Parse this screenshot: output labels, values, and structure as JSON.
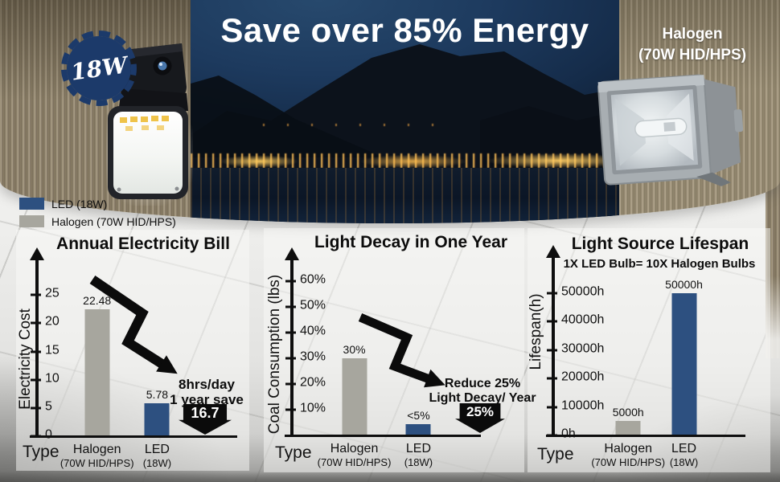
{
  "banner": {
    "title": "Save over 85% Energy",
    "badge_label": "18W",
    "halogen_label": [
      "Halogen",
      "(70W HID/HPS)"
    ]
  },
  "legend": {
    "items": [
      {
        "label": "LED (18W)",
        "color": "#2d5080"
      },
      {
        "label": "Halogen (70W HID/HPS)",
        "color": "#a7a69e"
      }
    ]
  },
  "colors": {
    "led_bar": "#2d5080",
    "halogen_bar": "#a7a69e",
    "badge_navy": "#1c3a6a",
    "annotation_black": "#0b0b0b"
  },
  "chart_data": [
    {
      "type": "bar",
      "title": "Annual Electricity Bill",
      "xlabel": "Type",
      "ylabel": "Electricity Cost",
      "categories": [
        [
          "Halogen",
          "(70W HID/HPS)"
        ],
        [
          "LED",
          "(18W)"
        ]
      ],
      "values": [
        22.48,
        5.78
      ],
      "bar_labels": [
        "22.48",
        "5.78"
      ],
      "bar_colors": [
        "#a7a69e",
        "#2d5080"
      ],
      "yticks": {
        "values": [
          0,
          5,
          10,
          15,
          20,
          25
        ],
        "labels": [
          "0",
          "5",
          "10",
          "15",
          "20",
          "25"
        ]
      },
      "ylim": [
        0,
        32
      ],
      "bar_pos_pct": [
        30,
        60
      ],
      "grid": false,
      "annotation": {
        "lines": [
          "8hrs/day",
          "1 year save"
        ],
        "arrow_value": "16.7"
      }
    },
    {
      "type": "bar",
      "title": "Light Decay in One Year",
      "xlabel": "Type",
      "ylabel": "Coal Consumption (lbs)",
      "categories": [
        [
          "Halogen",
          "(70W HID/HPS)"
        ],
        [
          "LED",
          "(18W)"
        ]
      ],
      "values": [
        30,
        4.5
      ],
      "bar_labels": [
        "30%",
        "<5%"
      ],
      "bar_colors": [
        "#a7a69e",
        "#2d5080"
      ],
      "yticks": {
        "values": [
          10,
          20,
          30,
          40,
          50,
          60
        ],
        "labels": [
          "10%",
          "20%",
          "30%",
          "40%",
          "50%",
          "60%"
        ]
      },
      "ylim": [
        0,
        70
      ],
      "bar_pos_pct": [
        33,
        67
      ],
      "grid": false,
      "annotation": {
        "lines": [
          "Reduce 25%",
          "Light Decay/ Year"
        ],
        "arrow_value": "25%"
      }
    },
    {
      "type": "bar",
      "title": "Light Source Lifespan",
      "subtitle": "1X LED Bulb= 10X Halogen Bulbs",
      "xlabel": "Type",
      "ylabel": "Lifespan(h)",
      "categories": [
        [
          "Halogen",
          "(70W HID/HPS)"
        ],
        [
          "LED",
          "(18W)"
        ]
      ],
      "values": [
        5000,
        50000
      ],
      "bar_labels": [
        "5000h",
        "50000h"
      ],
      "bar_colors": [
        "#a7a69e",
        "#2d5080"
      ],
      "yticks": {
        "values": [
          0,
          10000,
          20000,
          30000,
          40000,
          50000
        ],
        "labels": [
          "0h",
          "10000h",
          "20000h",
          "30000h",
          "40000h",
          "50000h"
        ]
      },
      "ylim": [
        0,
        64000
      ],
      "bar_pos_pct": [
        39,
        68
      ],
      "grid": false
    }
  ]
}
